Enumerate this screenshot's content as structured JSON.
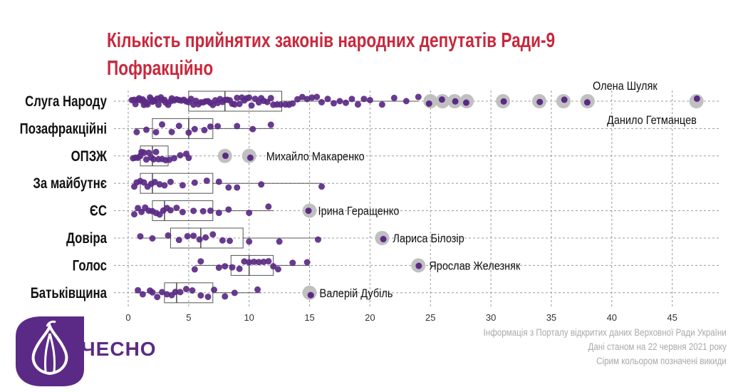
{
  "title": {
    "line1": "Кількість прийнятих законів народних депутатів Ради-9",
    "line2": "Пофракційно"
  },
  "footer": {
    "line1": "Інформація з Порталу відкритих даних Верховної Ради України",
    "line2": "Дані станом на 22 червня 2021 року",
    "line3": "Сірим кольором позначені викиди"
  },
  "logo": {
    "text": "ЧЕСНО"
  },
  "colors": {
    "title": "#c8283c",
    "point": "#5b2a86",
    "outlier": "#c0c0c0",
    "grid": "#9a9a9a",
    "box": "#555555",
    "footer": "#a9a9a9"
  },
  "chart_data": {
    "type": "boxplot-jitter",
    "orientation": "horizontal",
    "xlim": [
      0,
      48
    ],
    "xticks": [
      0,
      5,
      10,
      15,
      20,
      25,
      30,
      35,
      40,
      45
    ],
    "grid": true,
    "categories": [
      "Слуга Народу",
      "Позафракційні",
      "ОПЗЖ",
      "За майбутнє",
      "ЄС",
      "Довіра",
      "Голос",
      "Батьківщина"
    ],
    "boxes": [
      {
        "group": "Слуга Народу",
        "min": 0.5,
        "q1": 5,
        "median": 8,
        "q3": 12.7,
        "max": 24
      },
      {
        "group": "Позафракційні",
        "min": 0.5,
        "q1": 2,
        "median": 5,
        "q3": 7,
        "max": 12
      },
      {
        "group": "ОПЗЖ",
        "min": 0.5,
        "q1": 1,
        "median": 2,
        "q3": 3.3,
        "max": 5
      },
      {
        "group": "За майбутнє",
        "min": 0.5,
        "q1": 1,
        "median": 2,
        "q3": 7,
        "max": 16
      },
      {
        "group": "ЄС",
        "min": 0.5,
        "q1": 2,
        "median": 3,
        "q3": 7,
        "max": 12
      },
      {
        "group": "Довіра",
        "min": 1,
        "q1": 3.5,
        "median": 6,
        "q3": 9.5,
        "max": 16
      },
      {
        "group": "Голос",
        "min": 5.5,
        "q1": 8.5,
        "median": 10,
        "q3": 12,
        "max": 15
      },
      {
        "group": "Батьківщина",
        "min": 0.5,
        "q1": 3,
        "median": 4,
        "q3": 7,
        "max": 11
      }
    ],
    "points": [
      {
        "group": "Слуга Народу",
        "values": [
          0.3,
          0.5,
          0.6,
          0.8,
          0.9,
          1,
          1.1,
          1.2,
          1.3,
          1.4,
          1.5,
          1.6,
          1.8,
          1.9,
          2,
          2.1,
          2.2,
          2.4,
          2.5,
          2.7,
          2.8,
          3,
          3.1,
          3.3,
          3.5,
          3.6,
          3.8,
          4,
          4.2,
          4.4,
          4.6,
          4.8,
          5,
          5.2,
          5.4,
          5.6,
          5.8,
          6,
          6.2,
          6.4,
          6.6,
          6.8,
          7,
          7.2,
          7.4,
          7.6,
          7.8,
          8,
          8.2,
          8.4,
          8.6,
          8.8,
          9,
          9.2,
          9.4,
          9.6,
          9.8,
          10,
          10.2,
          10.5,
          10.8,
          11,
          11.2,
          11.5,
          11.8,
          12,
          12.3,
          12.6,
          13,
          13.3,
          13.6,
          14,
          14.4,
          14.8,
          15.2,
          15.6,
          16,
          16.5,
          17,
          17.5,
          18,
          18.5,
          19,
          19.5,
          20,
          21,
          22,
          23,
          24
        ]
      },
      {
        "group": "Позафракційні",
        "values": [
          0.7,
          1.5,
          2.3,
          2.8,
          3.6,
          4.2,
          5,
          5.5,
          6.3,
          6.8,
          7.4,
          9,
          10.3,
          11.8
        ]
      },
      {
        "group": "ОПЗЖ",
        "values": [
          0.4,
          0.6,
          0.8,
          1,
          1.1,
          1.3,
          1.5,
          1.7,
          1.9,
          2.1,
          2.3,
          2.5,
          2.8,
          3.1,
          3.4,
          3.8,
          4.3,
          4.8,
          5
        ]
      },
      {
        "group": "За майбутнє",
        "values": [
          0.5,
          0.7,
          1,
          1.3,
          1.6,
          1.9,
          2.2,
          2.6,
          3,
          3.5,
          4.5,
          5.5,
          6.5,
          7.5,
          8.3,
          9,
          11,
          16
        ]
      },
      {
        "group": "ЄС",
        "values": [
          0.5,
          0.8,
          1.1,
          1.4,
          1.7,
          2,
          2.3,
          2.6,
          2.9,
          3.2,
          3.5,
          4,
          4.5,
          5.4,
          6.2,
          6.8,
          7.5,
          8.3,
          10,
          11.6
        ]
      },
      {
        "group": "Довіра",
        "values": [
          1,
          2,
          3.3,
          4.2,
          4.9,
          5.4,
          5.9,
          6.4,
          7,
          7.8,
          8.4,
          10,
          12.5,
          15.7
        ]
      },
      {
        "group": "Голос",
        "values": [
          5.5,
          6,
          7.5,
          8,
          8.6,
          9.2,
          9.6,
          10,
          10.4,
          10.8,
          11.2,
          11.6,
          12,
          12.4,
          13.6,
          14.8
        ]
      },
      {
        "group": "Батьківщина",
        "values": [
          0.8,
          1.2,
          1.8,
          2,
          2.4,
          2.8,
          3.2,
          3.6,
          3.9,
          4.3,
          4.8,
          5.3,
          6,
          6.6,
          7.1,
          8,
          8.8,
          10.7
        ]
      }
    ],
    "outliers": [
      {
        "group": "Слуга Народу",
        "values": [
          25,
          26,
          27,
          28,
          31,
          34,
          36,
          38,
          47
        ]
      },
      {
        "group": "ОПЗЖ",
        "values": [
          8,
          10
        ]
      },
      {
        "group": "ЄС",
        "values": [
          15
        ]
      },
      {
        "group": "Довіра",
        "values": [
          21
        ]
      },
      {
        "group": "Голос",
        "values": [
          24
        ]
      },
      {
        "group": "Батьківщина",
        "values": [
          15
        ]
      }
    ],
    "annotations": [
      {
        "text": "Олена Шуляк",
        "group": "Слуга Народу",
        "x": 38
      },
      {
        "text": "Данило Гетманцев",
        "group": "Слуга Народу",
        "x": 47
      },
      {
        "text": "Михайло Макаренко",
        "group": "ОПЗЖ",
        "x": 10
      },
      {
        "text": "Ірина Геращенко",
        "group": "ЄС",
        "x": 15
      },
      {
        "text": "Лариса Білозір",
        "group": "Довіра",
        "x": 21
      },
      {
        "text": "Ярослав Железняк",
        "group": "Голос",
        "x": 24
      },
      {
        "text": "Валерій Дубіль",
        "group": "Батьківщина",
        "x": 15
      }
    ]
  }
}
